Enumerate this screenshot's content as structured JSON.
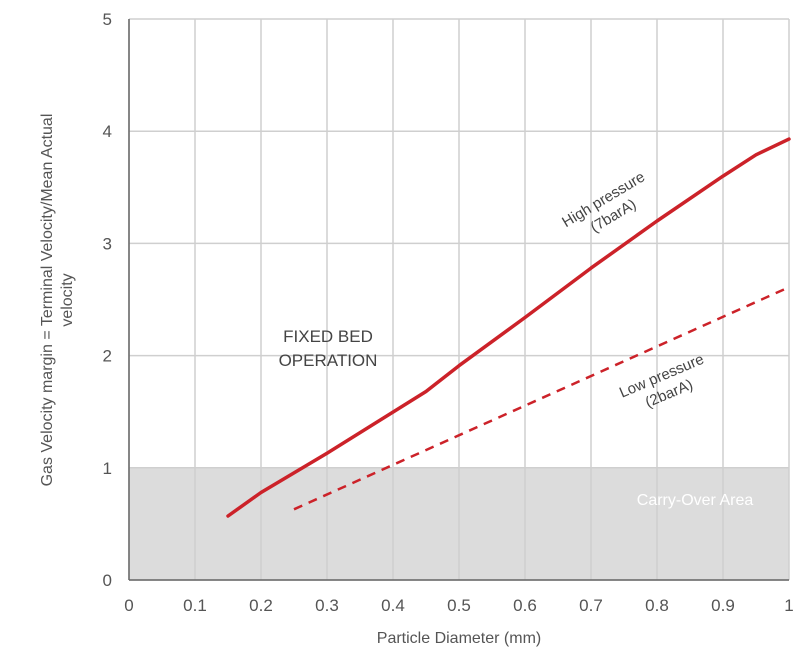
{
  "chart_data": {
    "type": "line",
    "title": "",
    "xlabel": "Particle Diameter (mm)",
    "ylabel_lines": [
      "Gas Velocity margin = Terminal Velocity/Mean Actual",
      "velocity"
    ],
    "xlim": [
      0,
      1
    ],
    "ylim": [
      0,
      5
    ],
    "x_ticks": [
      "0",
      "0.1",
      "0.2",
      "0.3",
      "0.4",
      "0.5",
      "0.6",
      "0.7",
      "0.8",
      "0.9",
      "1"
    ],
    "x_tick_values": [
      0,
      0.1,
      0.2,
      0.3,
      0.4,
      0.5,
      0.6,
      0.7,
      0.8,
      0.9,
      1
    ],
    "y_ticks": [
      "0",
      "1",
      "2",
      "3",
      "4",
      "5"
    ],
    "y_tick_values": [
      0,
      1,
      2,
      3,
      4,
      5
    ],
    "grid": true,
    "colors": {
      "line": "#cc2229",
      "grid": "#cfcfcf",
      "region": "#dcdcdc",
      "axis": "#666666"
    },
    "series": [
      {
        "name": "High pressure (7barA)",
        "label_lines": [
          "High pressure",
          "(7barA)"
        ],
        "style": "solid",
        "x": [
          0.15,
          0.2,
          0.3,
          0.45,
          0.5,
          0.6,
          0.7,
          0.8,
          0.9,
          0.95,
          1.0
        ],
        "y": [
          0.57,
          0.78,
          1.13,
          1.68,
          1.91,
          2.34,
          2.78,
          3.2,
          3.6,
          3.79,
          3.93
        ]
      },
      {
        "name": "Low pressure (2barA)",
        "label_lines": [
          "Low pressure",
          "(2barA)"
        ],
        "style": "dashed",
        "x": [
          0.25,
          1.0
        ],
        "y": [
          0.63,
          2.61
        ]
      }
    ],
    "regions": [
      {
        "label": "Carry-Over Area",
        "y_from": 0,
        "y_to": 1
      }
    ],
    "annotations": [
      {
        "lines": [
          "FIXED BED",
          "OPERATION"
        ]
      }
    ]
  }
}
